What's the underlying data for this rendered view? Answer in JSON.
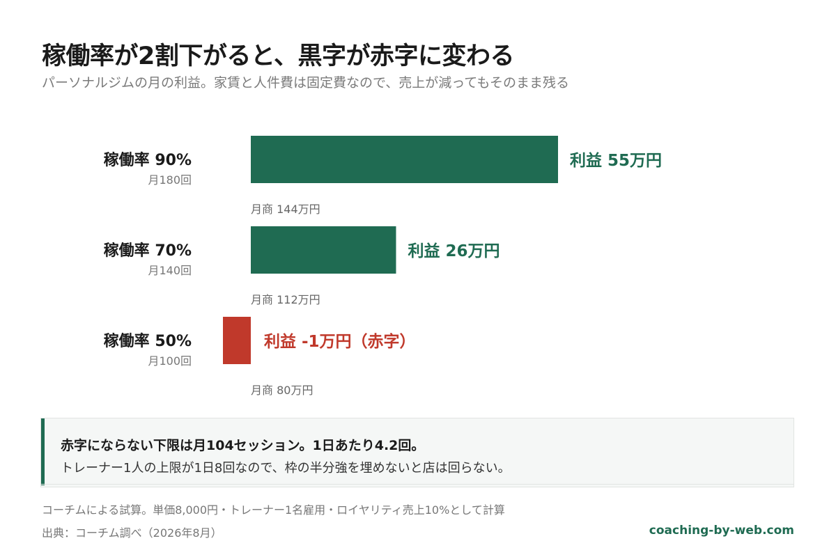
{
  "title": "稼働率が2割下がると、黒字が赤字に変わる",
  "subtitle": "パーソナルジムの月の利益。家賃と人件費は固定費なので、売上が減ってもそのまま残る",
  "colors": {
    "profit": "#1f6b52",
    "loss": "#c0392b"
  },
  "chart_data": {
    "type": "bar",
    "orientation": "horizontal",
    "categories": [
      "稼働率 90%",
      "稼働率 70%",
      "稼働率 50%"
    ],
    "sessions": [
      "月180回",
      "月140回",
      "月100回"
    ],
    "revenue_labels": [
      "月商 144万円",
      "月商 112万円",
      "月商 80万円"
    ],
    "series": [
      {
        "values": [
          55,
          26,
          -1
        ],
        "labels": [
          "利益 55万円",
          "利益 26万円",
          "利益 -1万円（赤字）"
        ]
      }
    ],
    "unit": "万円"
  },
  "callout": {
    "main": "赤字にならない下限は月104セッション。1日あたり4.2回。",
    "sub": "トレーナー1人の上限が1日8回なので、枠の半分強を埋めないと店は回らない。"
  },
  "footer": {
    "note": "コーチムによる試算。単価8,000円・トレーナー1名雇用・ロイヤリティ売上10%として計算",
    "source": "出典：コーチム調べ（2026年8月）",
    "brand": "coaching-by-web.com"
  }
}
